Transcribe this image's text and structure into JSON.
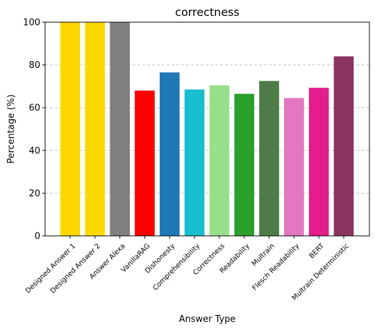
{
  "chart_data": {
    "type": "bar",
    "title": "correctness",
    "xlabel": "Answer Type",
    "ylabel": "Percentage (%)",
    "ylim": [
      0,
      100
    ],
    "yticks": [
      0,
      20,
      40,
      60,
      80,
      100
    ],
    "grid": "y-dashed",
    "categories": [
      "Designed Answer 1",
      "Designed Answer 2",
      "Answer Alexa",
      "VanillaRAG",
      "Dishonesty",
      "Comprehensibility",
      "Correctness",
      "Readability",
      "Multrain",
      "Flesch Readability",
      "BERT",
      "Multrain Deterministic"
    ],
    "values": [
      100,
      100,
      100,
      68,
      76.5,
      68.5,
      70.5,
      66.5,
      72.5,
      64.5,
      69.3,
      84
    ],
    "colors": [
      "#FFD700",
      "#FFD700",
      "#808080",
      "#FF0000",
      "#1F77B4",
      "#17BECF",
      "#98DF8A",
      "#2CA02C",
      "#4E7C47",
      "#E377C2",
      "#E31D8A",
      "#8B3461"
    ]
  }
}
